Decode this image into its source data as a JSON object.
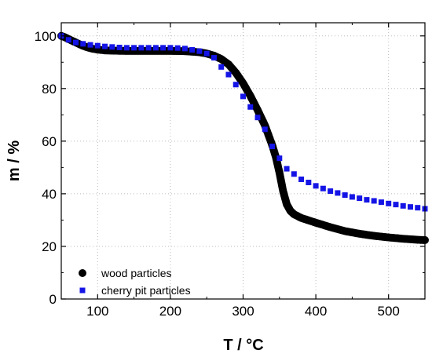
{
  "chart_data": {
    "type": "scatter",
    "title": "",
    "xlabel": "T / °C",
    "ylabel": "m / %",
    "xlim": [
      50,
      550
    ],
    "ylim": [
      0,
      105
    ],
    "xticks": [
      100,
      200,
      300,
      400,
      500
    ],
    "yticks": [
      0,
      20,
      40,
      60,
      80,
      100
    ],
    "grid": "dotted",
    "legend_position": "bottom-left",
    "series": [
      {
        "name": "wood particles",
        "marker": "circle",
        "color": "#000000",
        "x": [
          50,
          55,
          60,
          70,
          80,
          90,
          100,
          110,
          120,
          140,
          160,
          180,
          200,
          220,
          240,
          250,
          260,
          270,
          280,
          290,
          300,
          310,
          320,
          330,
          340,
          345,
          350,
          355,
          360,
          365,
          370,
          375,
          380,
          400,
          420,
          440,
          460,
          480,
          500,
          520,
          540,
          550
        ],
        "y": [
          100,
          99.5,
          98.8,
          97.5,
          96.2,
          95.3,
          94.8,
          94.5,
          94.4,
          94.3,
          94.3,
          94.3,
          94.3,
          94.2,
          93.8,
          93.3,
          92.5,
          91.2,
          89.2,
          86.0,
          82.0,
          77.2,
          71.8,
          66.0,
          58.5,
          54.0,
          48.0,
          41.0,
          36.0,
          33.5,
          32.2,
          31.5,
          30.8,
          29.0,
          27.3,
          25.8,
          24.8,
          24.0,
          23.4,
          22.9,
          22.5,
          22.4
        ]
      },
      {
        "name": "cherry pit particles",
        "marker": "square",
        "color": "#1414e6",
        "x": [
          50,
          60,
          70,
          80,
          90,
          100,
          110,
          120,
          130,
          140,
          150,
          160,
          170,
          180,
          190,
          200,
          210,
          220,
          230,
          240,
          250,
          260,
          270,
          280,
          290,
          300,
          310,
          320,
          330,
          340,
          350,
          360,
          370,
          380,
          390,
          400,
          410,
          420,
          430,
          440,
          450,
          460,
          470,
          480,
          490,
          500,
          510,
          520,
          530,
          540,
          550
        ],
        "y": [
          100,
          98.5,
          97.5,
          97.0,
          96.6,
          96.3,
          96.0,
          95.8,
          95.6,
          95.5,
          95.5,
          95.5,
          95.5,
          95.5,
          95.5,
          95.5,
          95.4,
          95.2,
          94.7,
          94.2,
          93.3,
          91.7,
          88.2,
          85.3,
          81.5,
          77.0,
          73.0,
          69.0,
          64.5,
          58.0,
          53.5,
          49.5,
          47.5,
          45.5,
          44.3,
          43.0,
          42.0,
          41.0,
          40.3,
          39.5,
          38.8,
          38.3,
          37.7,
          37.3,
          36.8,
          36.3,
          35.9,
          35.4,
          35.0,
          34.7,
          34.3
        ]
      }
    ]
  }
}
